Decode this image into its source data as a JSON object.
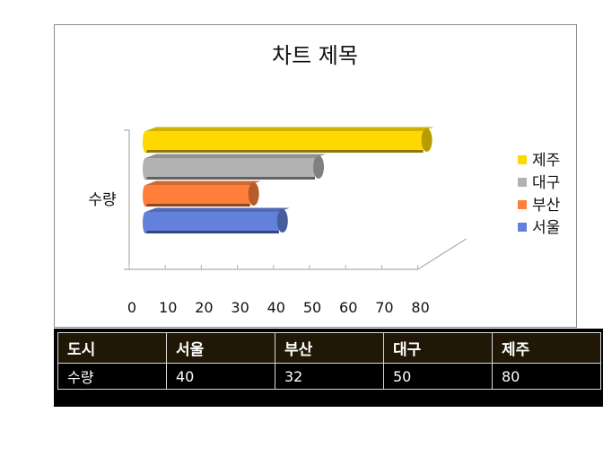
{
  "colors": {
    "seoul": "#6381dc",
    "busan": "#ff7f3a",
    "daegu": "#b2b2b2",
    "jeju": "#ffd800"
  },
  "chart_data": {
    "type": "bar",
    "orientation": "horizontal",
    "three_d": true,
    "title": "차트 제목",
    "ylabel": "수량",
    "xlabel": "",
    "xlim": [
      0,
      80
    ],
    "xticks": [
      "0",
      "10",
      "20",
      "30",
      "40",
      "50",
      "60",
      "70",
      "80"
    ],
    "grid": false,
    "legend_position": "right",
    "series": [
      {
        "name": "서울",
        "values": [
          40
        ],
        "color": "#6381dc"
      },
      {
        "name": "부산",
        "values": [
          32
        ],
        "color": "#ff7f3a"
      },
      {
        "name": "대구",
        "values": [
          50
        ],
        "color": "#b2b2b2"
      },
      {
        "name": "제주",
        "values": [
          80
        ],
        "color": "#ffd800"
      }
    ],
    "legend": [
      "제주",
      "대구",
      "부산",
      "서울"
    ]
  },
  "table": {
    "header": [
      "도시",
      "서울",
      "부산",
      "대구",
      "제주"
    ],
    "rows": [
      [
        "수량",
        "40",
        "32",
        "50",
        "80"
      ]
    ]
  }
}
